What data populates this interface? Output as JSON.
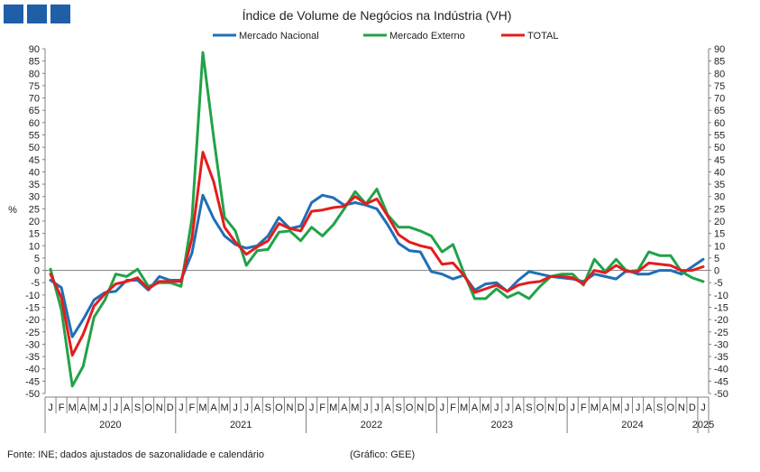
{
  "brand": {
    "color": "#1f5fa8",
    "squares": 3
  },
  "footer": {
    "source": "Fonte: INE; dados ajustados de sazonalidade  e calendário",
    "credit": "(Gráfico: GEE)"
  },
  "chart_data": {
    "type": "line",
    "title": "Índice de Volume de Negócios na Indústria (VH)",
    "ylabel": "%",
    "ylabel_right": "",
    "ylim": [
      -50,
      90
    ],
    "ytick_step": 5,
    "grid": false,
    "legend_position": "top-center",
    "month_letters": [
      "J",
      "F",
      "M",
      "A",
      "M",
      "J",
      "J",
      "A",
      "S",
      "O",
      "N",
      "D"
    ],
    "year_labels": [
      "2020",
      "2021",
      "2022",
      "2023",
      "2024",
      "2025"
    ],
    "x": [
      "2020-01",
      "2020-02",
      "2020-03",
      "2020-04",
      "2020-05",
      "2020-06",
      "2020-07",
      "2020-08",
      "2020-09",
      "2020-10",
      "2020-11",
      "2020-12",
      "2021-01",
      "2021-02",
      "2021-03",
      "2021-04",
      "2021-05",
      "2021-06",
      "2021-07",
      "2021-08",
      "2021-09",
      "2021-10",
      "2021-11",
      "2021-12",
      "2022-01",
      "2022-02",
      "2022-03",
      "2022-04",
      "2022-05",
      "2022-06",
      "2022-07",
      "2022-08",
      "2022-09",
      "2022-10",
      "2022-11",
      "2022-12",
      "2023-01",
      "2023-02",
      "2023-03",
      "2023-04",
      "2023-05",
      "2023-06",
      "2023-07",
      "2023-08",
      "2023-09",
      "2023-10",
      "2023-11",
      "2023-12",
      "2024-01",
      "2024-02",
      "2024-03",
      "2024-04",
      "2024-05",
      "2024-06",
      "2024-07",
      "2024-08",
      "2024-09",
      "2024-10",
      "2024-11",
      "2024-12",
      "2025-01"
    ],
    "series": [
      {
        "name": "Mercado Nacional",
        "color": "#1f6fb5",
        "values": [
          -4,
          -7,
          -27,
          -20,
          -12,
          -9,
          -8.5,
          -4,
          -4,
          -8,
          -2.5,
          -4,
          -4,
          7,
          30.5,
          21,
          14,
          10.5,
          9,
          10,
          14,
          21.5,
          17,
          18,
          27.5,
          30.5,
          29.5,
          26.5,
          27.5,
          26.5,
          25,
          18.5,
          11,
          8,
          7.5,
          -0.5,
          -1.5,
          -3.5,
          -2,
          -8,
          -5.5,
          -5,
          -8.5,
          -4,
          -0.5,
          -1.5,
          -2.5,
          -3,
          -3.5,
          -4.5,
          -1.5,
          -2.5,
          -3.5,
          0,
          -1.5,
          -1.5,
          0,
          0,
          -1.5,
          1.5,
          4.5
        ]
      },
      {
        "name": "Mercado Externo",
        "color": "#22a24a",
        "values": [
          0.5,
          -16,
          -47,
          -39,
          -19,
          -12,
          -1.5,
          -2.5,
          0.5,
          -6.5,
          -5,
          -5,
          -6.5,
          21,
          88.5,
          54,
          21.5,
          16,
          2,
          8,
          8.5,
          15.5,
          16,
          12,
          17.5,
          14,
          18.5,
          25,
          32,
          27,
          33,
          22.5,
          17.5,
          17.5,
          16,
          14,
          7.5,
          10.5,
          -1,
          -11.5,
          -11.5,
          -7.5,
          -11,
          -9,
          -11.5,
          -6.5,
          -2.5,
          -1.5,
          -1.5,
          -6,
          4.5,
          -0.5,
          4.5,
          -0.5,
          0,
          7.5,
          6,
          6,
          -0.5,
          -3,
          -4.5
        ]
      },
      {
        "name": "TOTAL",
        "color": "#e41d1d",
        "values": [
          -1.5,
          -11,
          -34.5,
          -26,
          -14.5,
          -9.5,
          -5.5,
          -4.5,
          -3,
          -7.5,
          -4.5,
          -4.5,
          -4.5,
          13,
          48,
          36,
          17.5,
          11.5,
          6.5,
          9.5,
          12,
          19,
          17,
          16,
          24,
          24.5,
          25.5,
          26,
          30,
          27,
          29,
          22,
          14.5,
          11.5,
          10,
          9,
          2.5,
          3,
          -2,
          -9,
          -7.5,
          -6,
          -8.5,
          -6,
          -5,
          -4.5,
          -2.5,
          -2.5,
          -3,
          -5.5,
          0,
          -1,
          2,
          -0.5,
          -0.5,
          3,
          2.5,
          2,
          0,
          0,
          1.5
        ]
      }
    ]
  }
}
